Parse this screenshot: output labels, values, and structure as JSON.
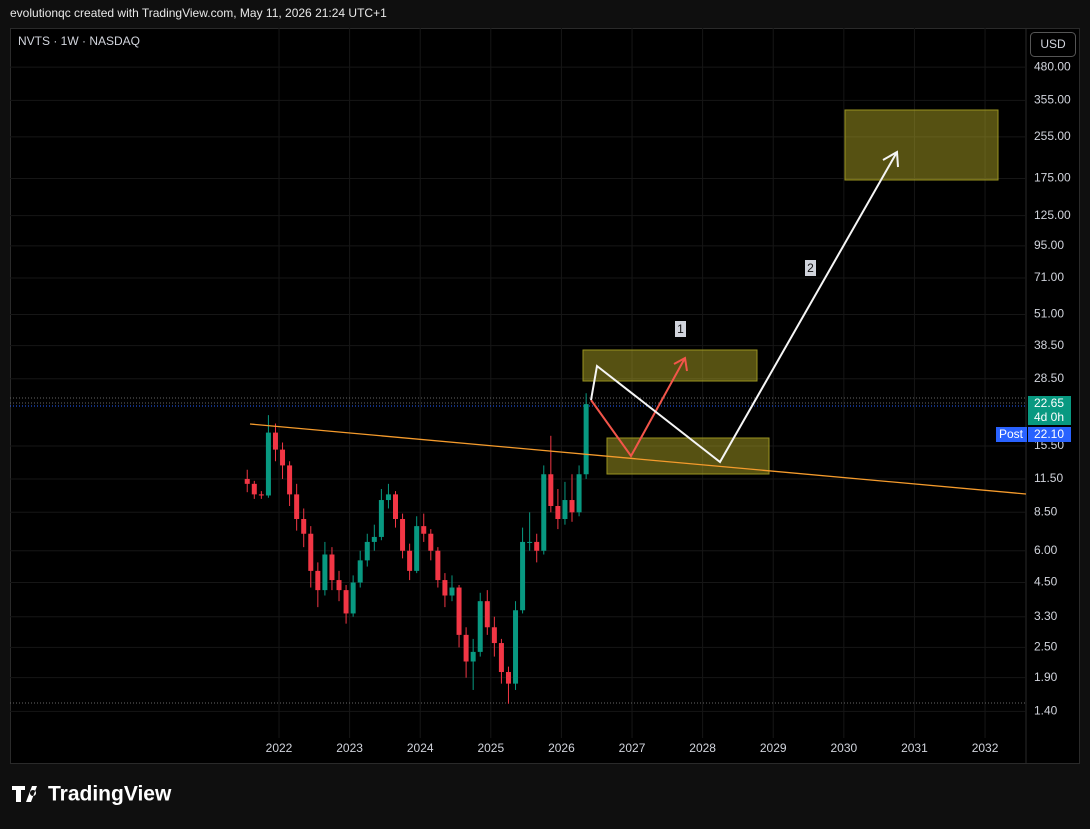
{
  "header": {
    "caption": "evolutionqc created with TradingView.com, May 11, 2026 21:24 UTC+1",
    "logo": "TradingView"
  },
  "chart_data": {
    "type": "candlestick",
    "title": "NVTS · 1W · NASDAQ",
    "currency": "USD",
    "log_scale": true,
    "grid": true,
    "up_color": "#089981",
    "down_color": "#f23645",
    "x": [
      2021.55,
      2021.65,
      2021.75,
      2021.85,
      2021.95,
      2022.05,
      2022.15,
      2022.25,
      2022.35,
      2022.45,
      2022.55,
      2022.65,
      2022.75,
      2022.85,
      2022.95,
      2023.05,
      2023.15,
      2023.25,
      2023.35,
      2023.45,
      2023.55,
      2023.65,
      2023.75,
      2023.85,
      2023.95,
      2024.05,
      2024.15,
      2024.25,
      2024.35,
      2024.45,
      2024.55,
      2024.65,
      2024.75,
      2024.85,
      2024.95,
      2025.05,
      2025.15,
      2025.25,
      2025.35,
      2025.45,
      2025.55,
      2025.65,
      2025.75,
      2025.85,
      2025.95,
      2026.05,
      2026.15,
      2026.25,
      2026.35
    ],
    "open": [
      11.5,
      11,
      10,
      9.9,
      17.5,
      15,
      13,
      10,
      8,
      7,
      5,
      4.2,
      5.8,
      4.6,
      4.2,
      3.4,
      4.5,
      5.5,
      6.5,
      6.8,
      9.5,
      10,
      8,
      6,
      5,
      7.5,
      7,
      6,
      4.6,
      4,
      4.3,
      2.8,
      2.2,
      2.4,
      3.8,
      3,
      2.6,
      2,
      1.8,
      3.5,
      6.5,
      6.5,
      6,
      12,
      9,
      8,
      9.5,
      8.5,
      12
    ],
    "high": [
      12.5,
      11.3,
      10.3,
      20.5,
      19,
      16,
      13.5,
      11,
      8.8,
      7.5,
      5.4,
      6.5,
      6.2,
      5,
      4.4,
      4.8,
      6,
      7,
      7.6,
      10.5,
      11,
      10.3,
      8.4,
      6.4,
      8.2,
      8.4,
      7.3,
      6.2,
      4.9,
      4.8,
      4.4,
      3,
      2.7,
      4.1,
      4.2,
      3.3,
      2.7,
      2.1,
      3.8,
      7.4,
      8.5,
      7,
      13,
      17,
      10.5,
      11.2,
      12,
      13,
      25
    ],
    "low": [
      10.2,
      9.6,
      9.6,
      9.7,
      13.5,
      11.5,
      9,
      7.2,
      6.2,
      4.3,
      3.6,
      4,
      4.2,
      3.8,
      3.1,
      3.3,
      4.3,
      5.2,
      6,
      6.6,
      8.8,
      7.4,
      5.6,
      4.6,
      4.9,
      6.5,
      5.5,
      4.3,
      3.6,
      3.8,
      2.5,
      1.9,
      1.7,
      2.3,
      2.8,
      2.3,
      1.8,
      1.5,
      1.7,
      3.4,
      6,
      5.4,
      5.8,
      8.5,
      7.3,
      7.6,
      7.8,
      8.2,
      11.5
    ],
    "close": [
      11,
      10,
      9.9,
      17.5,
      15,
      13,
      10,
      8,
      7,
      5,
      4.2,
      5.8,
      4.6,
      4.2,
      3.4,
      4.5,
      5.5,
      6.5,
      6.8,
      9.5,
      10,
      8,
      6,
      5,
      7.5,
      7,
      6,
      4.6,
      4,
      4.3,
      2.8,
      2.2,
      2.4,
      3.8,
      3,
      2.6,
      2,
      1.8,
      3.5,
      6.5,
      6.5,
      6,
      12,
      9,
      8,
      9.5,
      8.5,
      12,
      22.65
    ],
    "xlim": [
      2018.19,
      2032.58
    ],
    "xticks": [
      2022,
      2023,
      2024,
      2025,
      2026,
      2027,
      2028,
      2029,
      2030,
      2031,
      2032
    ],
    "ylim": [
      1.1,
      684
    ],
    "yticks": [
      {
        "value": 480,
        "label": "480.00"
      },
      {
        "value": 355,
        "label": "355.00"
      },
      {
        "value": 255,
        "label": "255.00"
      },
      {
        "value": 175,
        "label": "175.00"
      },
      {
        "value": 125,
        "label": "125.00"
      },
      {
        "value": 95,
        "label": "95.00"
      },
      {
        "value": 71,
        "label": "71.00"
      },
      {
        "value": 51,
        "label": "51.00"
      },
      {
        "value": 38.5,
        "label": "38.50"
      },
      {
        "value": 28.5,
        "label": "28.50"
      },
      {
        "value": 15.5,
        "label": "15.50"
      },
      {
        "value": 11.5,
        "label": "11.50"
      },
      {
        "value": 8.5,
        "label": "8.50"
      },
      {
        "value": 6,
        "label": "6.00"
      },
      {
        "value": 4.5,
        "label": "4.50"
      },
      {
        "value": 3.3,
        "label": "3.30"
      },
      {
        "value": 2.5,
        "label": "2.50"
      },
      {
        "value": 1.9,
        "label": "1.90"
      },
      {
        "value": 1.4,
        "label": "1.40"
      }
    ],
    "countdown": "4d 0h",
    "post_market": {
      "tag": "Post",
      "price": {
        "value": 22.1,
        "label": "22.10"
      }
    },
    "annotations": [
      "1",
      "2"
    ]
  }
}
